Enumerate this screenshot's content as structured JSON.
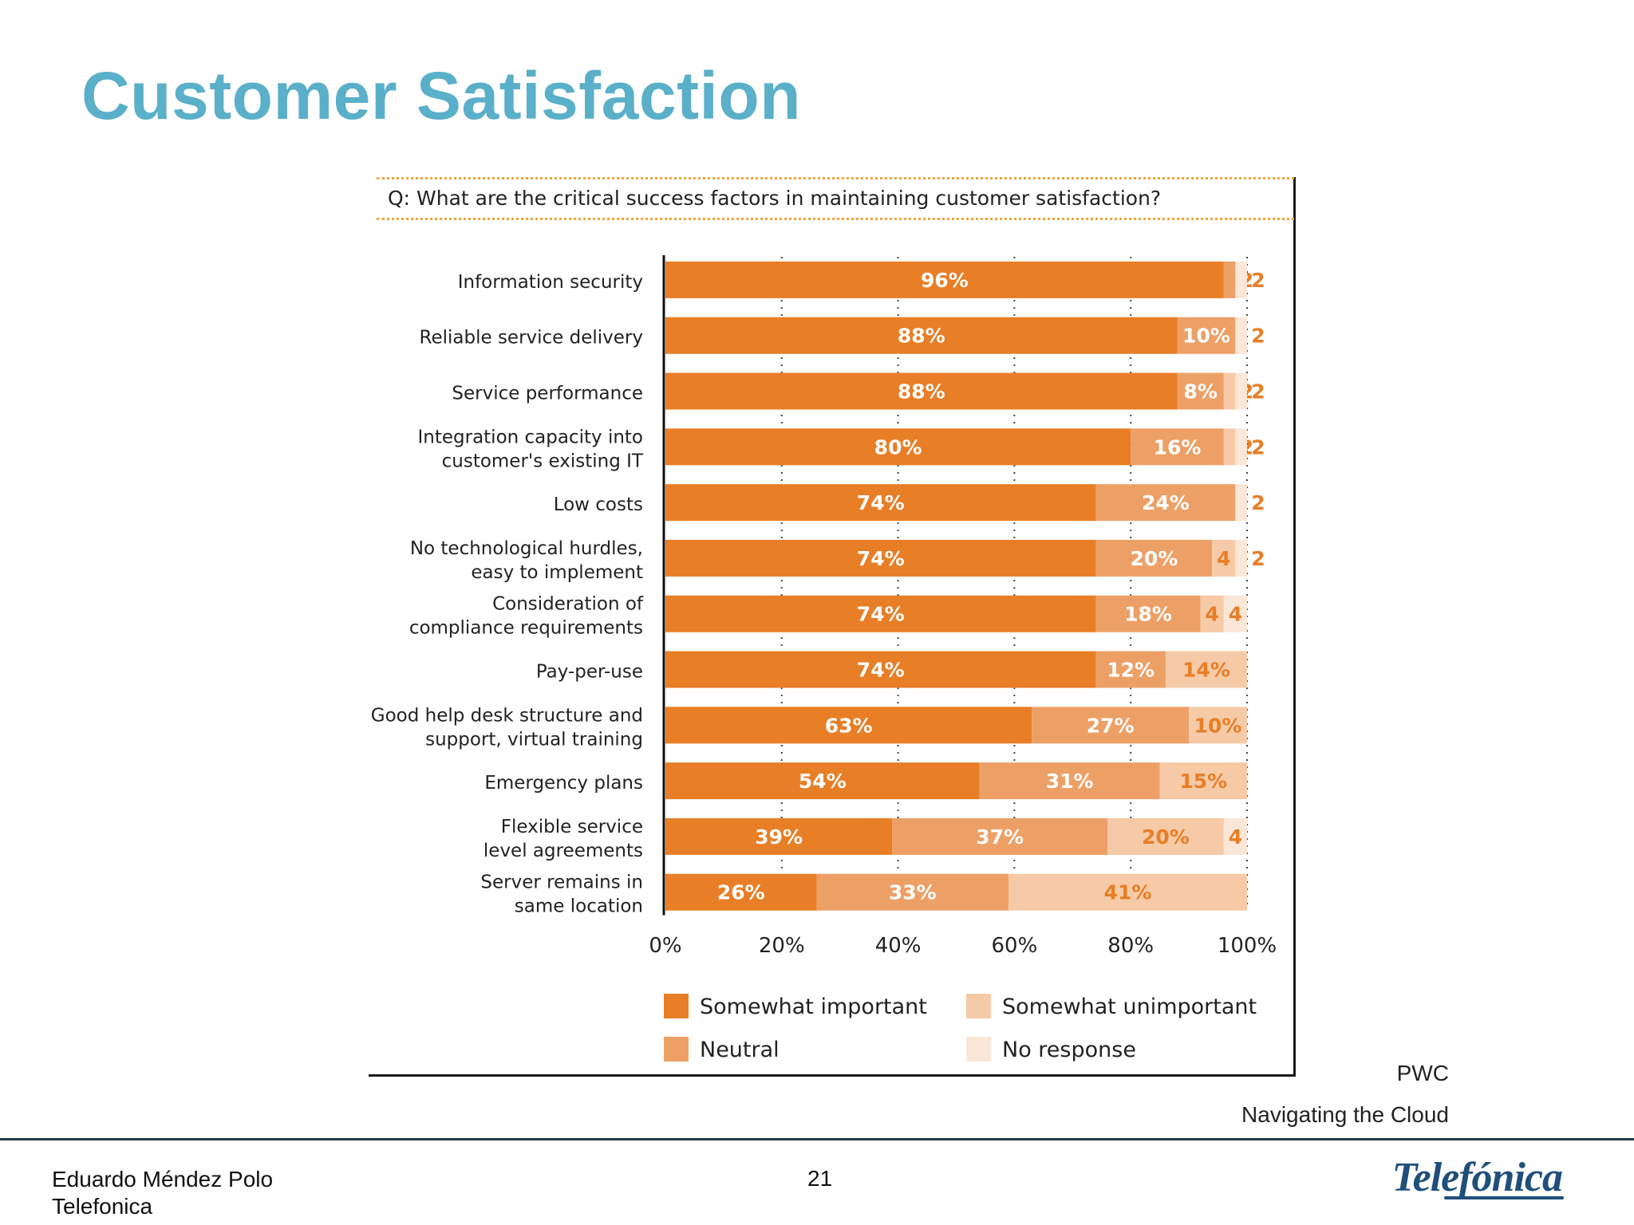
{
  "slide": {
    "title": "Customer Satisfaction",
    "question": "Q: What are the critical success factors in maintaining customer satisfaction?",
    "source": [
      "PWC",
      "Navigating the Cloud"
    ]
  },
  "footer": {
    "author": "Eduardo Méndez Polo",
    "company": "Telefonica",
    "page_number": "21",
    "logo_text": "Telefónica"
  },
  "chart_data": {
    "type": "bar",
    "orientation": "horizontal",
    "stacked": true,
    "categories": [
      [
        "Information security"
      ],
      [
        "Reliable service delivery"
      ],
      [
        "Service performance"
      ],
      [
        "Integration capacity into",
        "customer's existing IT"
      ],
      [
        "Low costs"
      ],
      [
        "No technological hurdles,",
        "easy to implement"
      ],
      [
        "Consideration of",
        "compliance requirements"
      ],
      [
        "Pay-per-use"
      ],
      [
        "Good help desk structure and",
        "support, virtual training"
      ],
      [
        "Emergency plans"
      ],
      [
        "Flexible service",
        "level agreements"
      ],
      [
        "Server remains in",
        "same location"
      ]
    ],
    "series": [
      {
        "name": "Somewhat important",
        "color": "#e87e26",
        "label_color": "#ffffff",
        "values": [
          96,
          88,
          88,
          80,
          74,
          74,
          74,
          74,
          63,
          54,
          39,
          26
        ],
        "labels": [
          "96%",
          "88%",
          "88%",
          "80%",
          "74%",
          "74%",
          "74%",
          "74%",
          "63%",
          "54%",
          "39%",
          "26%"
        ]
      },
      {
        "name": "Neutral",
        "color": "#eda066",
        "label_color": "#ffffff",
        "values": [
          2,
          10,
          8,
          16,
          24,
          20,
          18,
          12,
          27,
          31,
          37,
          33
        ],
        "labels": [
          "2",
          "10%",
          "8%",
          "16%",
          "24%",
          "20%",
          "18%",
          "12%",
          "27%",
          "31%",
          "37%",
          "33%"
        ]
      },
      {
        "name": "Somewhat unimportant",
        "color": "#f6caa6",
        "label_color": "#e87e26",
        "values": [
          0,
          0,
          2,
          2,
          0,
          4,
          4,
          14,
          10,
          15,
          20,
          41
        ],
        "labels": [
          "",
          "",
          "2",
          "2",
          "",
          "4",
          "4",
          "14%",
          "10%",
          "15%",
          "20%",
          "41%"
        ]
      },
      {
        "name": "No response",
        "color": "#fbe7d8",
        "label_color": "#e87e26",
        "values": [
          2,
          2,
          2,
          2,
          2,
          2,
          4,
          0,
          0,
          0,
          4,
          0
        ],
        "labels": [
          "2",
          "2",
          "2",
          "2",
          "2",
          "2",
          "4",
          "",
          "",
          "",
          "4",
          ""
        ]
      }
    ],
    "xlim": [
      0,
      100
    ],
    "xticks": [
      "0%",
      "20%",
      "40%",
      "60%",
      "80%",
      "100%"
    ],
    "grid": "dotted vertical",
    "legend_position": "bottom"
  }
}
